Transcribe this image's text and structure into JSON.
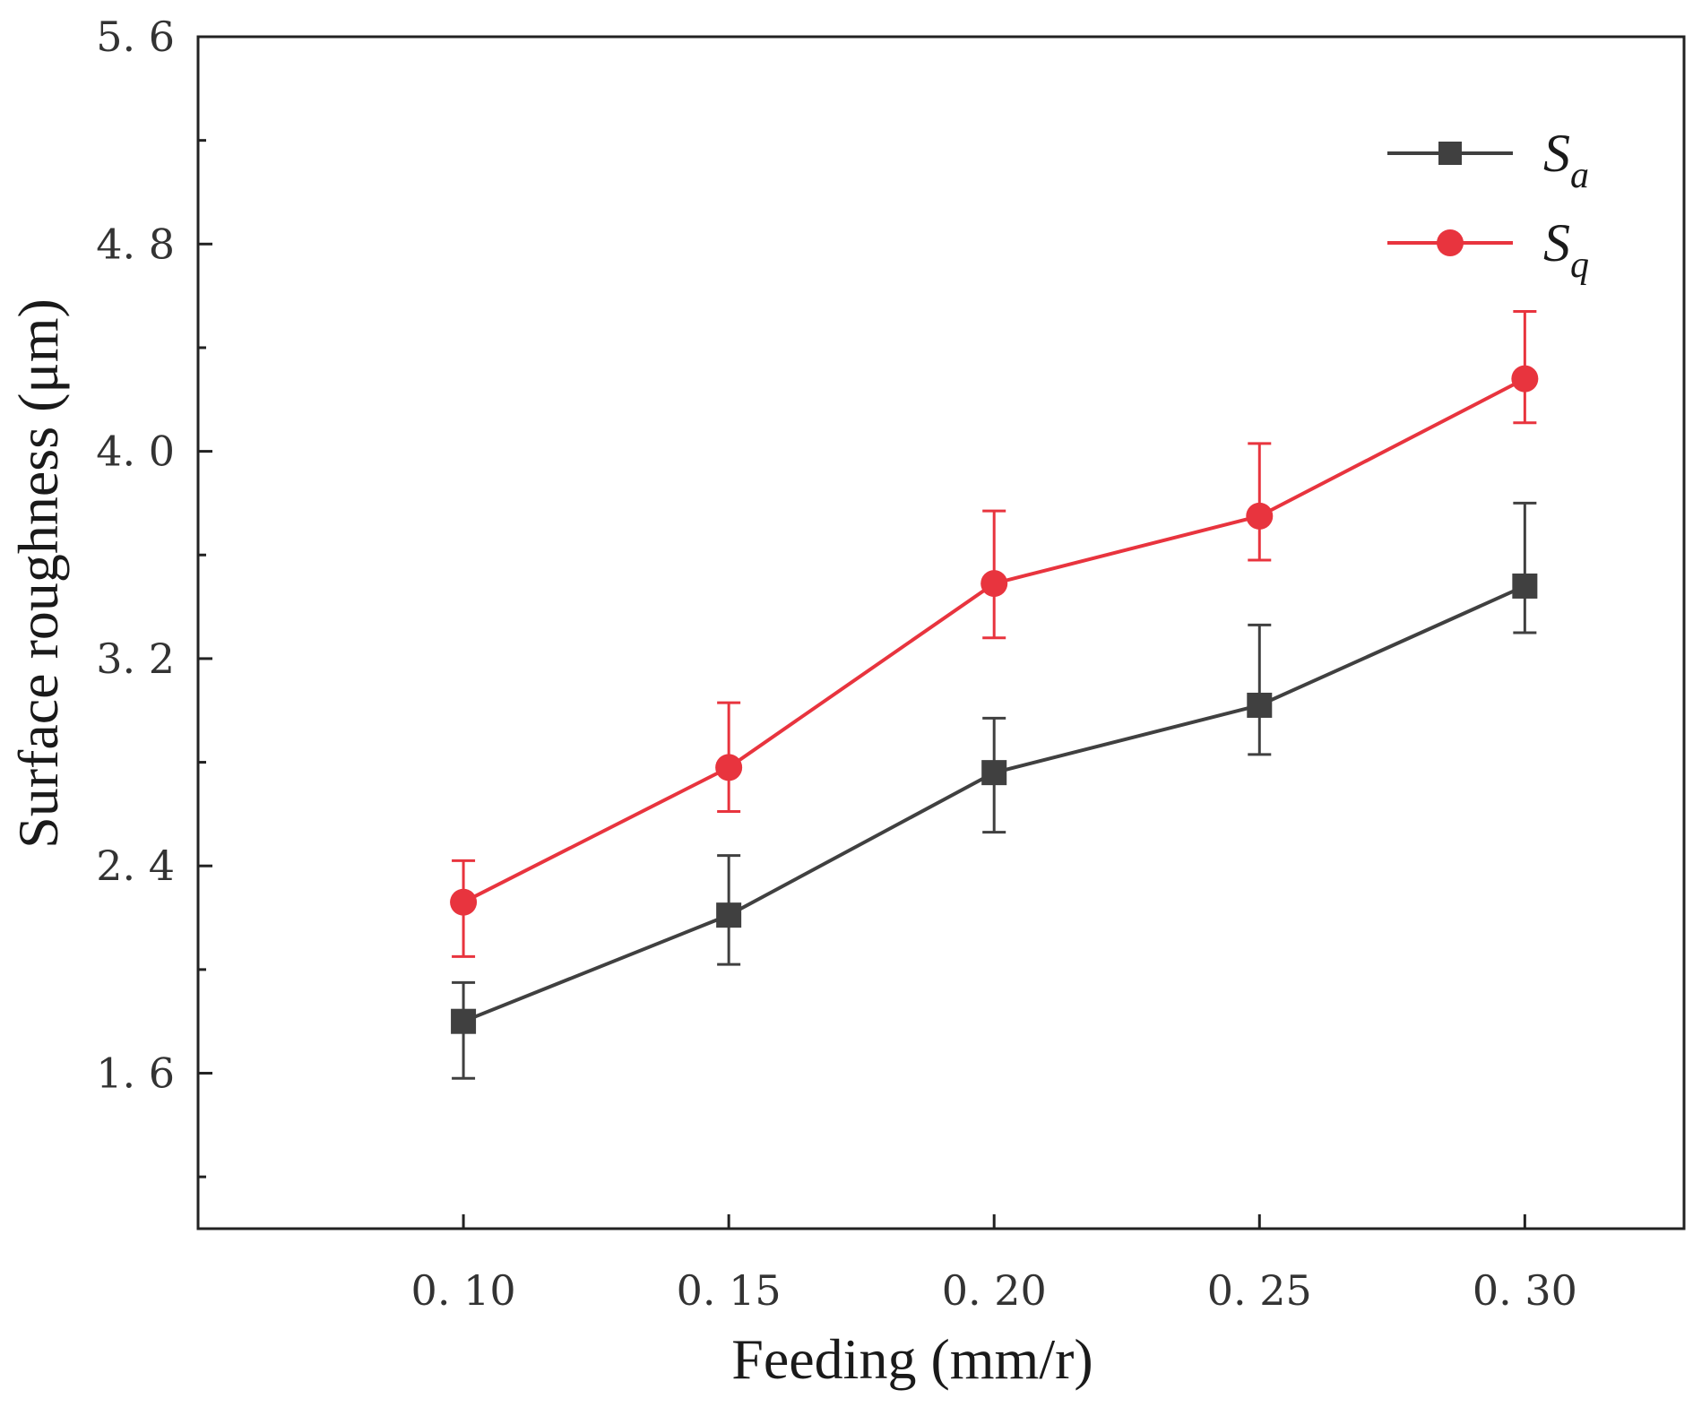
{
  "chart_data": {
    "type": "line",
    "title": "",
    "xlabel": "Feeding (mm/r)",
    "ylabel": "Surface roughness (μm)",
    "x": [
      0.1,
      0.15,
      0.2,
      0.25,
      0.3
    ],
    "x_tick_labels": [
      "0. 10",
      "0. 15",
      "0. 20",
      "0. 25",
      "0. 30"
    ],
    "xlim": [
      0.05,
      0.33
    ],
    "ylim": [
      1.0,
      5.6
    ],
    "y_ticks": [
      1.6,
      2.4,
      3.2,
      4.0,
      4.8,
      5.6
    ],
    "y_tick_labels": [
      "1. 6",
      "2. 4",
      "3. 2",
      "4. 0",
      "4. 8",
      "5. 6"
    ],
    "y_minor_ticks": [
      1.2,
      2.0,
      2.8,
      3.6,
      4.4,
      5.2
    ],
    "grid": false,
    "legend_position": "top-right",
    "series": [
      {
        "name": "Sa",
        "name_main": "S",
        "name_sub": "a",
        "marker": "square",
        "color": "#404040",
        "values": [
          1.8,
          2.21,
          2.76,
          3.02,
          3.48
        ],
        "err_low": [
          1.58,
          2.02,
          2.53,
          2.83,
          3.3
        ],
        "err_high": [
          1.95,
          2.44,
          2.97,
          3.33,
          3.8
        ]
      },
      {
        "name": "Sq",
        "name_main": "S",
        "name_sub": "q",
        "marker": "circle",
        "color": "#e8343e",
        "values": [
          2.26,
          2.78,
          3.49,
          3.75,
          4.28
        ],
        "err_low": [
          2.05,
          2.61,
          3.28,
          3.58,
          4.11
        ],
        "err_high": [
          2.42,
          3.03,
          3.77,
          4.03,
          4.54
        ]
      }
    ]
  }
}
